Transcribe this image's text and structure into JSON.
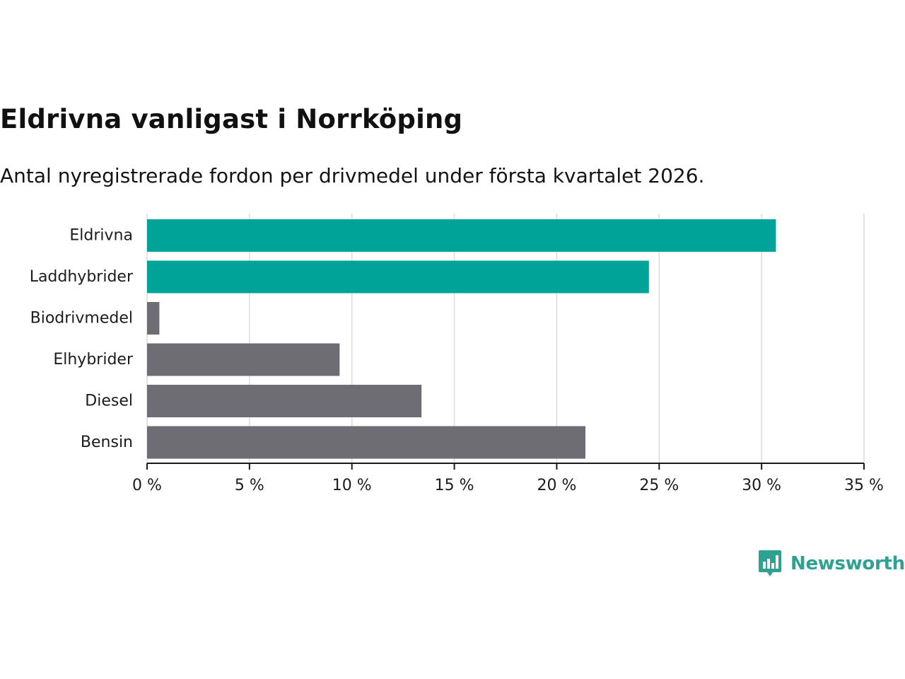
{
  "title": "Eldrivna vanligast i Norrköping",
  "subtitle": "Antal nyregistrerade fordon per drivmedel under första kvartalet 2026.",
  "colors": {
    "highlight": "#00a398",
    "neutral": "#6e6d74",
    "grid": "#dcdcdc",
    "axis": "#1a1a1a",
    "brand": "#2fa192"
  },
  "chart_data": {
    "type": "bar",
    "orientation": "horizontal",
    "categories": [
      "Eldrivna",
      "Laddhybrider",
      "Biodrivmedel",
      "Elhybrider",
      "Diesel",
      "Bensin"
    ],
    "values": [
      30.7,
      24.5,
      0.6,
      9.4,
      13.4,
      21.4
    ],
    "highlighted": [
      true,
      true,
      false,
      false,
      false,
      false
    ],
    "unit": "%",
    "xlim": [
      0,
      35
    ],
    "xticks": [
      0,
      5,
      10,
      15,
      20,
      25,
      30,
      35
    ],
    "xtick_labels": [
      "0 %",
      "5 %",
      "10 %",
      "15 %",
      "20 %",
      "25 %",
      "30 %",
      "35 %"
    ],
    "grid": true,
    "xlabel": "",
    "ylabel": ""
  },
  "brand": {
    "name": "Newsworthy",
    "icon": "newsworthy-logo-icon"
  }
}
